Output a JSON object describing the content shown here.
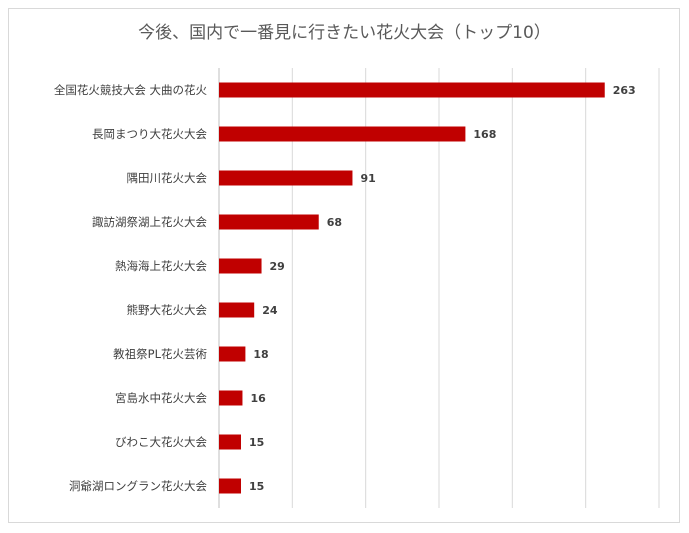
{
  "chart_data": {
    "type": "bar",
    "orientation": "horizontal",
    "title": "今後、国内で一番見に行きたい花火大会（トップ10）",
    "categories": [
      "全国花火競技大会 大曲の花火",
      "長岡まつり大花火大会",
      "隅田川花火大会",
      "諏訪湖祭湖上花火大会",
      "熱海海上花火大会",
      "熊野大花火大会",
      "教祖祭PL花火芸術",
      "宮島水中花火大会",
      "びわこ大花火大会",
      "洞爺湖ロングラン花火大会"
    ],
    "values": [
      263,
      168,
      91,
      68,
      29,
      24,
      18,
      16,
      15,
      15
    ],
    "xlim": [
      0,
      300
    ],
    "grid": true,
    "data_labels": true,
    "bar_color": "#c00000",
    "gridline_color": "#d9d9d9"
  }
}
